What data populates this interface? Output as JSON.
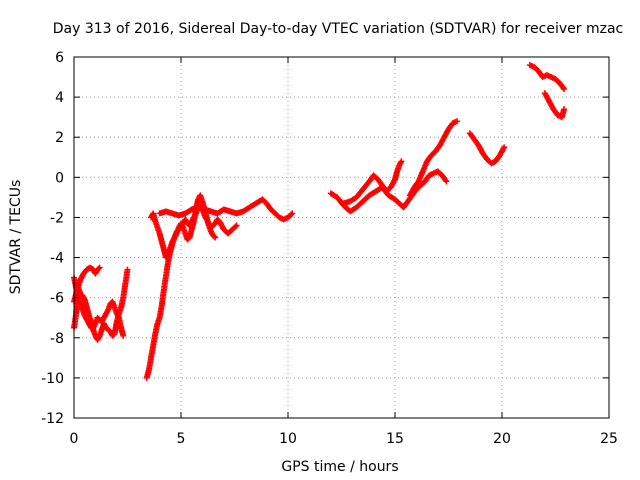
{
  "chart_data": {
    "type": "scatter",
    "title": "Day 313 of 2016, Sidereal Day-to-day VTEC variation (SDTVAR) for receiver mzac",
    "xlabel": "GPS time / hours",
    "ylabel": "SDTVAR / TECUs",
    "xlim": [
      0,
      25
    ],
    "ylim": [
      -12,
      6
    ],
    "xticks": [
      "0",
      "5",
      "10",
      "15",
      "20",
      "25"
    ],
    "yticks": [
      "-12",
      "-10",
      "-8",
      "-6",
      "-4",
      "-2",
      "0",
      "2",
      "4",
      "6"
    ],
    "grid": true,
    "marker": "plus",
    "color": "#ff0000",
    "segments": [
      [
        [
          0.0,
          -7.5
        ],
        [
          0.1,
          -6.8
        ],
        [
          0.15,
          -6.0
        ],
        [
          0.2,
          -5.5
        ],
        [
          0.3,
          -5.8
        ],
        [
          0.4,
          -5.9
        ],
        [
          0.5,
          -6.1
        ],
        [
          0.6,
          -6.5
        ],
        [
          0.7,
          -6.9
        ],
        [
          0.8,
          -7.2
        ],
        [
          0.9,
          -7.6
        ],
        [
          1.0,
          -7.9
        ],
        [
          1.1,
          -8.1
        ],
        [
          1.2,
          -7.9
        ],
        [
          1.3,
          -7.6
        ],
        [
          1.4,
          -7.3
        ],
        [
          1.5,
          -7.5
        ],
        [
          1.6,
          -7.6
        ],
        [
          1.7,
          -7.7
        ],
        [
          1.8,
          -7.9
        ],
        [
          1.9,
          -7.8
        ],
        [
          2.0,
          -7.2
        ],
        [
          2.1,
          -6.8
        ],
        [
          2.2,
          -6.5
        ],
        [
          2.3,
          -6.0
        ],
        [
          2.4,
          -5.3
        ],
        [
          2.5,
          -4.6
        ]
      ],
      [
        [
          0.0,
          -5.0
        ],
        [
          0.1,
          -5.5
        ],
        [
          0.2,
          -5.9
        ],
        [
          0.3,
          -6.2
        ],
        [
          0.4,
          -6.6
        ],
        [
          0.5,
          -6.9
        ],
        [
          0.6,
          -7.1
        ],
        [
          0.7,
          -7.3
        ],
        [
          0.8,
          -7.5
        ],
        [
          0.9,
          -7.5
        ],
        [
          1.0,
          -7.3
        ],
        [
          1.1,
          -7.0
        ],
        [
          1.2,
          -7.1
        ],
        [
          1.3,
          -7.2
        ],
        [
          1.4,
          -7.0
        ],
        [
          1.5,
          -6.8
        ],
        [
          1.6,
          -6.6
        ],
        [
          1.7,
          -6.3
        ],
        [
          1.8,
          -6.2
        ],
        [
          1.9,
          -6.5
        ],
        [
          2.0,
          -6.8
        ],
        [
          2.1,
          -7.0
        ],
        [
          2.2,
          -7.5
        ],
        [
          2.3,
          -7.9
        ]
      ],
      [
        [
          0.0,
          -6.2
        ],
        [
          0.15,
          -5.6
        ],
        [
          0.3,
          -5.1
        ],
        [
          0.45,
          -4.8
        ],
        [
          0.6,
          -4.6
        ],
        [
          0.75,
          -4.5
        ],
        [
          0.9,
          -4.6
        ],
        [
          1.0,
          -4.8
        ],
        [
          1.1,
          -4.6
        ],
        [
          1.2,
          -4.5
        ]
      ],
      [
        [
          3.4,
          -10.0
        ],
        [
          3.5,
          -9.6
        ],
        [
          3.6,
          -9.0
        ],
        [
          3.7,
          -8.4
        ],
        [
          3.8,
          -7.8
        ],
        [
          3.9,
          -7.3
        ],
        [
          4.0,
          -7.0
        ],
        [
          4.1,
          -6.4
        ],
        [
          4.2,
          -5.6
        ],
        [
          4.3,
          -4.9
        ],
        [
          4.4,
          -4.2
        ],
        [
          4.5,
          -3.7
        ],
        [
          4.6,
          -3.3
        ],
        [
          4.7,
          -3.0
        ],
        [
          4.8,
          -2.7
        ],
        [
          4.9,
          -2.6
        ],
        [
          5.0,
          -2.4
        ],
        [
          5.1,
          -2.3
        ],
        [
          5.2,
          -2.1
        ],
        [
          5.3,
          -2.3
        ],
        [
          5.4,
          -2.4
        ],
        [
          5.5,
          -2.2
        ],
        [
          5.6,
          -2.0
        ],
        [
          5.7,
          -1.8
        ],
        [
          5.8,
          -1.5
        ],
        [
          5.9,
          -1.4
        ],
        [
          6.0,
          -1.6
        ],
        [
          6.1,
          -1.9
        ],
        [
          6.2,
          -2.1
        ],
        [
          6.3,
          -2.3
        ],
        [
          6.4,
          -2.5
        ],
        [
          6.5,
          -2.4
        ],
        [
          6.6,
          -2.3
        ],
        [
          6.7,
          -2.1
        ],
        [
          6.8,
          -2.2
        ],
        [
          6.9,
          -2.4
        ],
        [
          7.0,
          -2.6
        ],
        [
          7.2,
          -2.8
        ],
        [
          7.4,
          -2.6
        ],
        [
          7.6,
          -2.4
        ]
      ],
      [
        [
          3.6,
          -2.0
        ],
        [
          3.7,
          -1.8
        ],
        [
          3.8,
          -2.2
        ],
        [
          3.9,
          -2.5
        ],
        [
          4.0,
          -2.8
        ],
        [
          4.1,
          -3.2
        ],
        [
          4.2,
          -3.6
        ],
        [
          4.3,
          -4.0
        ],
        [
          4.4,
          -3.8
        ],
        [
          4.5,
          -3.5
        ],
        [
          4.6,
          -3.2
        ],
        [
          4.7,
          -3.0
        ],
        [
          4.8,
          -2.8
        ],
        [
          4.9,
          -2.5
        ],
        [
          5.0,
          -2.3
        ],
        [
          5.1,
          -2.5
        ],
        [
          5.2,
          -2.8
        ],
        [
          5.3,
          -3.1
        ],
        [
          5.4,
          -3.0
        ],
        [
          5.5,
          -2.6
        ],
        [
          5.6,
          -2.2
        ],
        [
          5.7,
          -1.6
        ],
        [
          5.8,
          -1.1
        ],
        [
          5.9,
          -0.9
        ],
        [
          6.0,
          -1.2
        ],
        [
          6.1,
          -1.6
        ],
        [
          6.2,
          -2.0
        ],
        [
          6.3,
          -2.4
        ],
        [
          6.4,
          -2.7
        ],
        [
          6.5,
          -2.9
        ],
        [
          6.6,
          -3.0
        ]
      ],
      [
        [
          4.0,
          -1.8
        ],
        [
          4.3,
          -1.7
        ],
        [
          4.6,
          -1.8
        ],
        [
          4.9,
          -1.9
        ],
        [
          5.2,
          -1.8
        ],
        [
          5.5,
          -1.6
        ],
        [
          5.8,
          -1.5
        ],
        [
          6.1,
          -1.6
        ],
        [
          6.4,
          -1.7
        ],
        [
          6.7,
          -1.8
        ],
        [
          7.0,
          -1.6
        ],
        [
          7.3,
          -1.7
        ],
        [
          7.6,
          -1.8
        ],
        [
          7.9,
          -1.7
        ],
        [
          8.2,
          -1.5
        ],
        [
          8.5,
          -1.3
        ],
        [
          8.8,
          -1.1
        ],
        [
          9.0,
          -1.3
        ],
        [
          9.2,
          -1.6
        ],
        [
          9.4,
          -1.8
        ],
        [
          9.6,
          -2.0
        ],
        [
          9.8,
          -2.1
        ],
        [
          10.0,
          -2.0
        ],
        [
          10.2,
          -1.8
        ]
      ],
      [
        [
          12.0,
          -0.8
        ],
        [
          12.3,
          -1.0
        ],
        [
          12.6,
          -1.4
        ],
        [
          12.9,
          -1.7
        ],
        [
          13.2,
          -1.5
        ],
        [
          13.5,
          -1.2
        ],
        [
          13.8,
          -0.9
        ],
        [
          14.1,
          -0.7
        ],
        [
          14.4,
          -0.5
        ],
        [
          14.7,
          -0.9
        ],
        [
          15.0,
          -1.1
        ],
        [
          15.2,
          -1.3
        ],
        [
          15.4,
          -1.5
        ],
        [
          15.6,
          -1.2
        ],
        [
          15.8,
          -0.9
        ],
        [
          16.0,
          -0.6
        ],
        [
          16.2,
          -0.4
        ],
        [
          16.4,
          -0.2
        ],
        [
          16.6,
          0.1
        ],
        [
          16.8,
          0.2
        ],
        [
          17.0,
          0.3
        ],
        [
          17.2,
          0.1
        ],
        [
          17.4,
          -0.2
        ]
      ],
      [
        [
          12.6,
          -1.3
        ],
        [
          12.9,
          -1.2
        ],
        [
          13.2,
          -1.0
        ],
        [
          13.5,
          -0.6
        ],
        [
          13.8,
          -0.2
        ],
        [
          14.0,
          0.1
        ],
        [
          14.2,
          -0.1
        ],
        [
          14.4,
          -0.4
        ],
        [
          14.6,
          -0.7
        ],
        [
          14.8,
          -0.5
        ],
        [
          15.0,
          -0.1
        ],
        [
          15.1,
          0.3
        ],
        [
          15.2,
          0.6
        ],
        [
          15.3,
          0.8
        ]
      ],
      [
        [
          15.7,
          -0.9
        ],
        [
          15.9,
          -0.5
        ],
        [
          16.1,
          -0.2
        ],
        [
          16.3,
          0.3
        ],
        [
          16.5,
          0.8
        ],
        [
          16.7,
          1.1
        ],
        [
          16.9,
          1.3
        ],
        [
          17.1,
          1.6
        ],
        [
          17.3,
          2.0
        ],
        [
          17.5,
          2.4
        ],
        [
          17.7,
          2.7
        ],
        [
          17.9,
          2.8
        ]
      ],
      [
        [
          18.5,
          2.2
        ],
        [
          18.7,
          1.9
        ],
        [
          18.9,
          1.6
        ],
        [
          19.1,
          1.2
        ],
        [
          19.3,
          0.9
        ],
        [
          19.5,
          0.7
        ],
        [
          19.7,
          0.8
        ],
        [
          19.9,
          1.1
        ],
        [
          20.1,
          1.5
        ]
      ],
      [
        [
          21.3,
          5.6
        ],
        [
          21.5,
          5.5
        ],
        [
          21.7,
          5.3
        ],
        [
          21.9,
          5.0
        ],
        [
          22.1,
          5.1
        ],
        [
          22.3,
          5.0
        ],
        [
          22.5,
          4.9
        ],
        [
          22.7,
          4.7
        ],
        [
          22.9,
          4.4
        ]
      ],
      [
        [
          22.0,
          4.2
        ],
        [
          22.2,
          3.8
        ],
        [
          22.4,
          3.4
        ],
        [
          22.6,
          3.1
        ],
        [
          22.8,
          3.0
        ],
        [
          22.9,
          3.4
        ]
      ]
    ]
  }
}
